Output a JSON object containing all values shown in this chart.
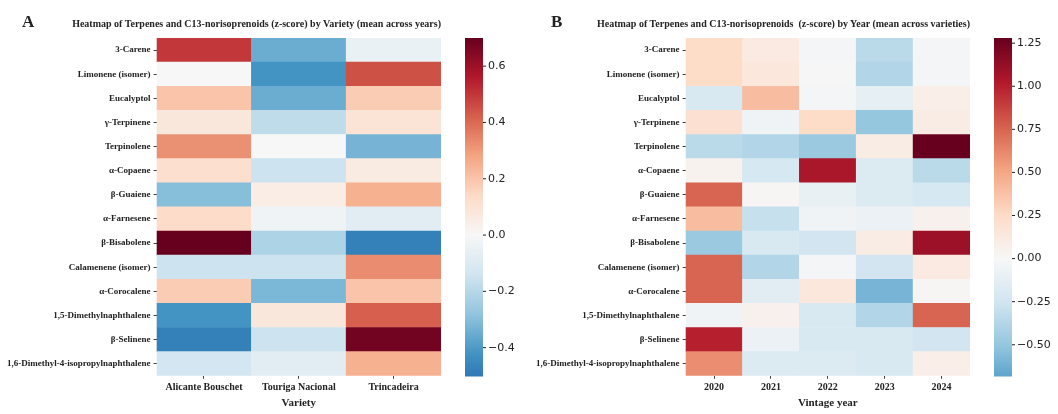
{
  "chart_data": [
    {
      "type": "heatmap",
      "title": "Heatmap of Terpenes and C13-norisoprenoids (z-score) by Variety (mean across years)",
      "xlabel": "Variety",
      "annotations": [
        "A"
      ],
      "categories": [
        "Alicante Bouschet",
        "Touriga Nacional",
        "Trincadeira"
      ],
      "y_categories": [
        "3-Carene",
        "Limonene (isomer)",
        "Eucalyptol",
        "γ-Terpinene",
        "Terpinolene",
        "α-Copaene",
        "β-Guaiene",
        "α-Farnesene",
        "β-Bisabolene",
        "Calamenene (isomer)",
        "α-Corocalene",
        "1,5-Dimethylnaphthalene",
        "β-Selinene",
        "1,6-Dimethyl-4-isopropylnaphthalene"
      ],
      "cells": [
        [
          0.5,
          -0.35,
          -0.05
        ],
        [
          0.0,
          -0.42,
          0.45
        ],
        [
          0.2,
          -0.35,
          0.18
        ],
        [
          0.08,
          -0.18,
          0.1
        ],
        [
          0.32,
          0.0,
          -0.33
        ],
        [
          0.12,
          -0.15,
          0.06
        ],
        [
          -0.3,
          0.05,
          0.25
        ],
        [
          0.13,
          -0.03,
          -0.08
        ],
        [
          0.7,
          -0.22,
          -0.48
        ],
        [
          -0.15,
          -0.15,
          0.33
        ],
        [
          0.18,
          -0.32,
          0.2
        ],
        [
          -0.42,
          0.08,
          0.42
        ],
        [
          -0.48,
          -0.15,
          0.68
        ],
        [
          -0.13,
          -0.08,
          0.25
        ]
      ],
      "clim": [
        -0.5,
        0.7
      ],
      "cticks": [
        {
          "value": -0.4,
          "label": "−0.4"
        },
        {
          "value": -0.2,
          "label": "−0.2"
        },
        {
          "value": 0,
          "label": "0.0"
        },
        0.2,
        0.4,
        0.6
      ]
    },
    {
      "type": "heatmap",
      "title": "Heatmap of Terpenes and C13-norisoprenoids  (z-score) by Year (mean across varieties)",
      "xlabel": "Vintage year",
      "annotations": [
        "B"
      ],
      "categories": [
        "2020",
        "2021",
        "2022",
        "2023",
        "2024"
      ],
      "y_categories": [
        "3-Carene",
        "Limonene (isomer)",
        "Eucalyptol",
        "γ-Terpinene",
        "Terpinolene",
        "α-Copaene",
        "β-Guaiene",
        "α-Farnesene",
        "β-Bisabolene",
        "Calamenene (isomer)",
        "α-Corocalene",
        "1,5-Dimethylnaphthalene",
        "β-Selinene",
        "1,6-Dimethyl-4-isopropylnaphthalene"
      ],
      "cells": [
        [
          0.25,
          0.12,
          -0.03,
          -0.35,
          -0.03
        ],
        [
          0.25,
          0.15,
          -0.01,
          -0.38,
          -0.03
        ],
        [
          -0.2,
          0.4,
          -0.03,
          -0.12,
          0.08
        ],
        [
          0.2,
          -0.05,
          0.25,
          -0.5,
          0.1
        ],
        [
          -0.35,
          -0.38,
          -0.48,
          0.1,
          1.28
        ],
        [
          0.05,
          -0.22,
          1.05,
          -0.18,
          -0.35
        ],
        [
          0.75,
          0.02,
          -0.1,
          -0.18,
          -0.22
        ],
        [
          0.4,
          -0.3,
          -0.05,
          -0.08,
          0.06
        ],
        [
          -0.48,
          -0.2,
          -0.25,
          0.1,
          1.1
        ],
        [
          0.75,
          -0.38,
          -0.03,
          -0.25,
          0.12
        ],
        [
          0.75,
          -0.15,
          0.15,
          -0.6,
          0.02
        ],
        [
          -0.05,
          0.06,
          -0.2,
          -0.38,
          0.75
        ],
        [
          1.0,
          -0.08,
          -0.2,
          -0.2,
          -0.25
        ],
        [
          0.6,
          -0.18,
          -0.18,
          -0.2,
          0.08
        ]
      ],
      "clim": [
        -0.68,
        1.28
      ],
      "cticks": [
        {
          "value": -0.5,
          "label": "−0.50"
        },
        {
          "value": -0.25,
          "label": "−0.25"
        },
        {
          "value": 0,
          "label": "0.00"
        },
        {
          "value": 0.25,
          "label": "0.25"
        },
        {
          "value": 0.5,
          "label": "0.50"
        },
        {
          "value": 0.75,
          "label": "0.75"
        },
        {
          "value": 1.0,
          "label": "1.00"
        },
        {
          "value": 1.25,
          "label": "1.25"
        }
      ]
    }
  ]
}
